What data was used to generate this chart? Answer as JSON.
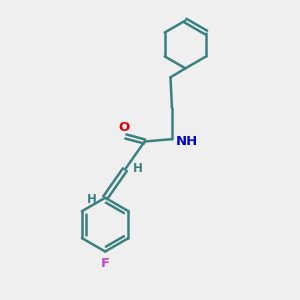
{
  "background_color": "#efefef",
  "bond_color": "#3a8080",
  "bond_width": 1.8,
  "atom_colors": {
    "O": "#dd0000",
    "N": "#0000cc",
    "F": "#cc44cc",
    "H": "#3a8080"
  },
  "font_size": 9.5,
  "fig_width": 3.0,
  "fig_height": 3.0,
  "dpi": 100,
  "xlim": [
    0,
    10
  ],
  "ylim": [
    0,
    10
  ]
}
